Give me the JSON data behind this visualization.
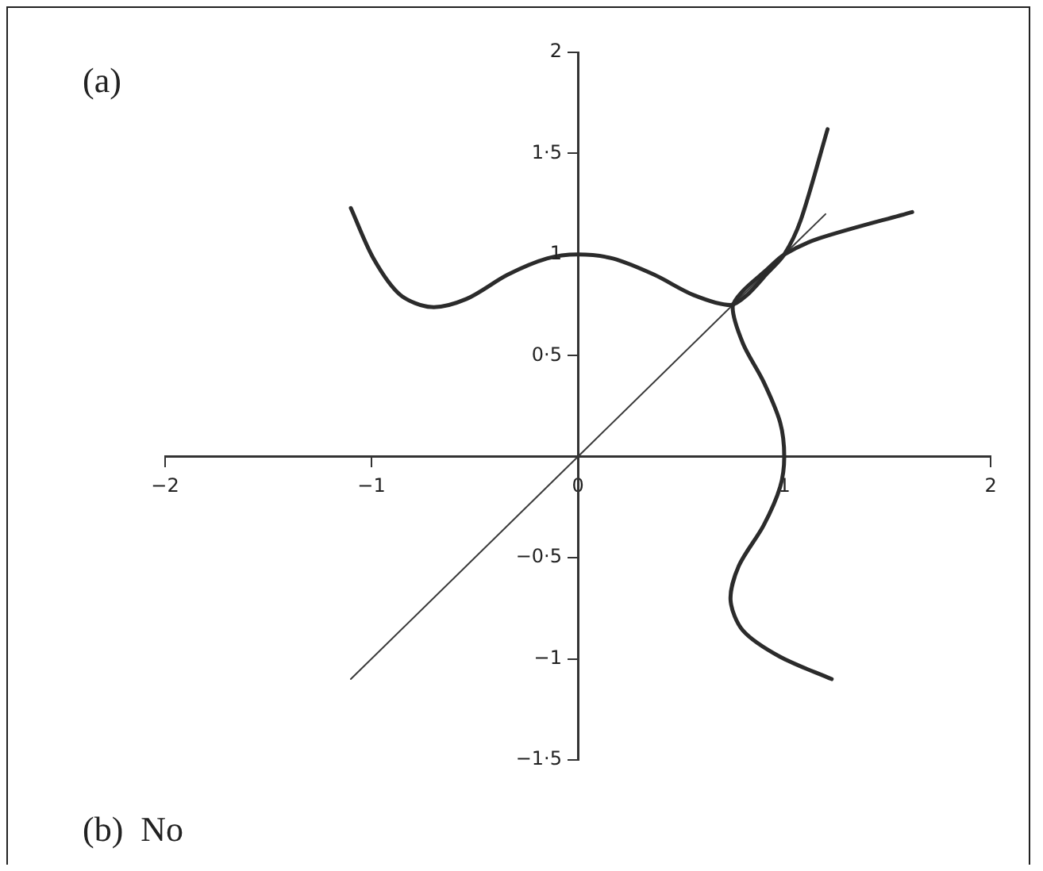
{
  "chart_data": {
    "type": "line",
    "annotations": [
      "(a)",
      "(b)  No"
    ],
    "series": [
      {
        "color": "#2b2b2b",
        "x": [
          -1.1,
          -0.99,
          -0.86,
          -0.71,
          -0.54,
          -0.34,
          -0.15,
          0,
          0.17,
          0.37,
          0.56,
          0.74,
          0.82,
          0.92,
          1.0,
          1.08,
          1.21
        ],
        "values": [
          1.23,
          0.98,
          0.8,
          0.74,
          0.78,
          0.9,
          0.98,
          1.0,
          0.98,
          0.9,
          0.8,
          0.75,
          0.8,
          0.91,
          1.0,
          1.17,
          1.62
        ]
      },
      {
        "color": "#2b2b2b",
        "x": [
          1.23,
          0.98,
          0.8,
          0.74,
          0.78,
          0.9,
          0.98,
          1.0,
          0.98,
          0.9,
          0.8,
          0.75,
          0.8,
          0.91,
          1.0,
          1.17,
          1.62
        ],
        "values": [
          -1.1,
          -0.99,
          -0.86,
          -0.71,
          -0.54,
          -0.34,
          -0.15,
          0,
          0.17,
          0.37,
          0.56,
          0.74,
          0.82,
          0.92,
          1.0,
          1.08,
          1.21
        ]
      },
      {
        "color": "#3a3a3a",
        "x": [
          -1.1,
          1.2
        ],
        "values": [
          -1.1,
          1.2
        ]
      }
    ],
    "xlim": [
      -2,
      2
    ],
    "xticks": [
      {
        "value": -2,
        "label": "−2"
      },
      {
        "value": -1,
        "label": "−1"
      },
      0,
      1,
      2
    ],
    "ylim": [
      -1.5,
      2
    ],
    "yticks": [
      {
        "value": -1.5,
        "label": "−1·5"
      },
      {
        "value": -1,
        "label": "−1"
      },
      {
        "value": -0.5,
        "label": "−0·5"
      },
      {
        "value": 0,
        "label": null
      },
      {
        "value": 0.5,
        "label": "0·5"
      },
      1,
      {
        "value": 1.5,
        "label": "1·5"
      },
      2
    ],
    "grid": false,
    "legend": false,
    "marker": "none",
    "line_style": "solid"
  }
}
